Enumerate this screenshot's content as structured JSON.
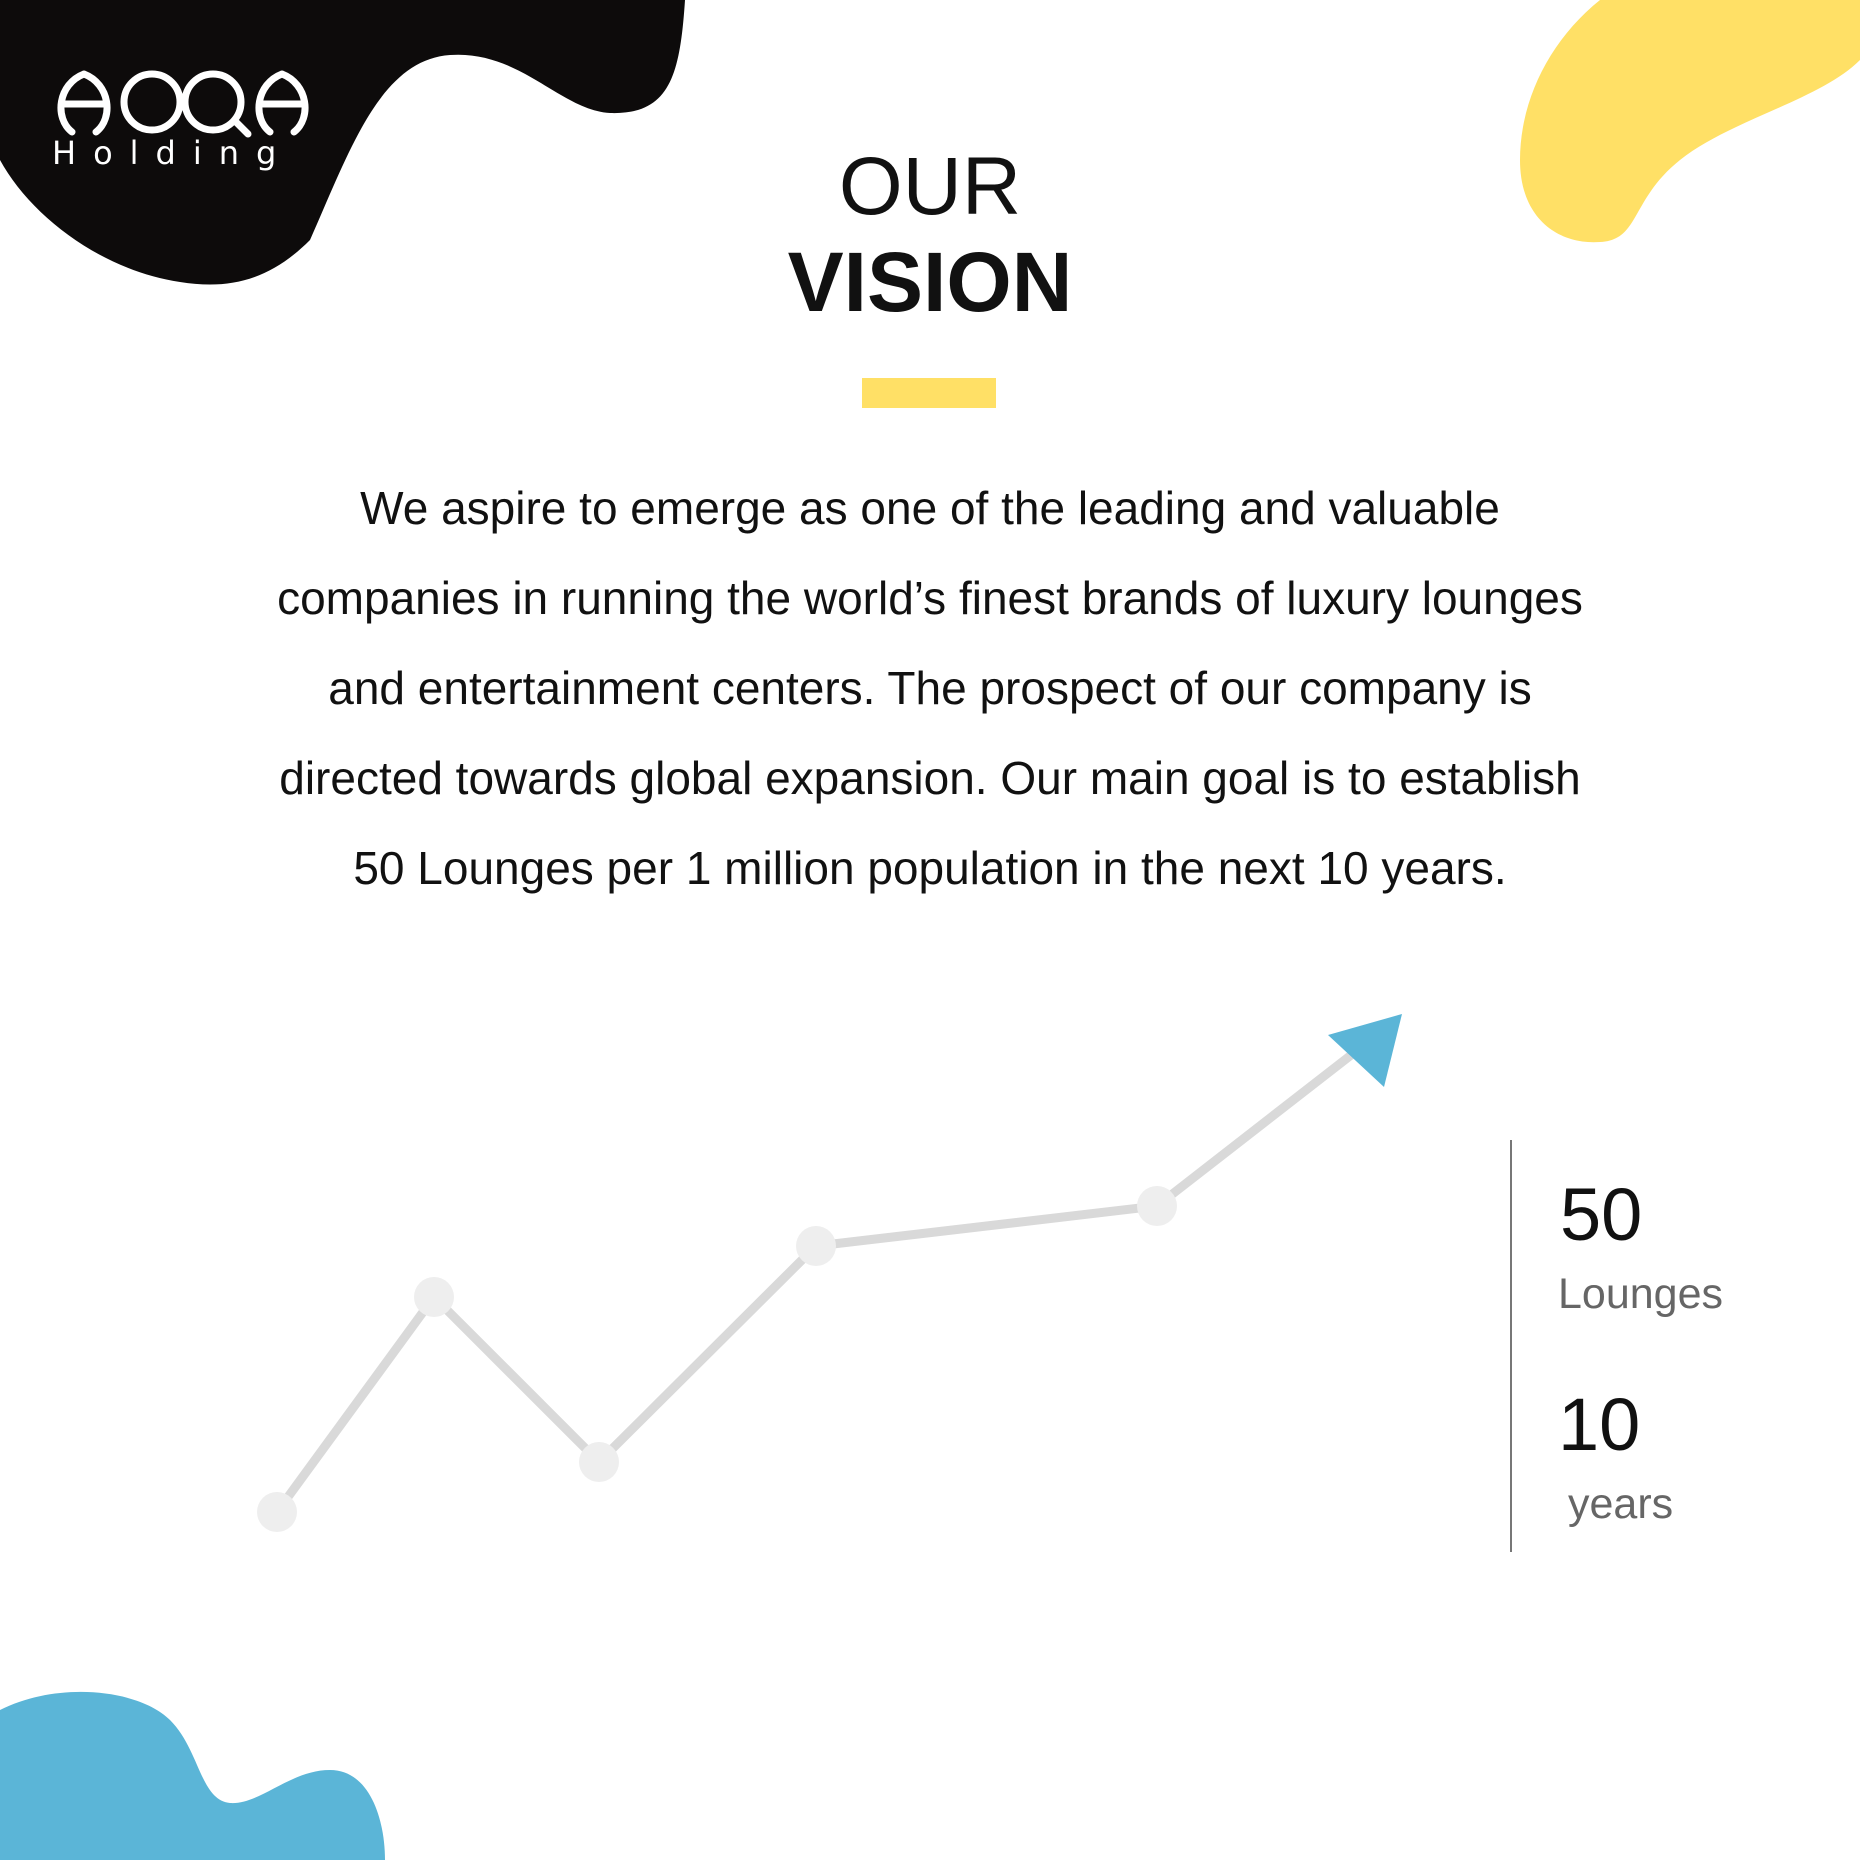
{
  "brand": {
    "logo_text": "HOQA",
    "sub_label": "Holding"
  },
  "heading": {
    "line1": "OUR",
    "line2": "VISION"
  },
  "body": {
    "lines": [
      "We aspire to emerge as one of the leading and valuable",
      "companies in running the world’s finest brands of luxury lounges",
      "and entertainment centers. The prospect of our company is",
      "directed towards global expansion. Our main goal is to establish",
      "50  Lounges per 1 million population in the next 10 years."
    ]
  },
  "stats": {
    "lounges_value": "50",
    "lounges_label": "Lounges",
    "years_value": "10",
    "years_label": "years"
  },
  "colors": {
    "black": "#0d0b0b",
    "yellow": "#ffe066",
    "blue": "#5bb5d7",
    "line": "#d9d9d9",
    "dot": "#eeeeee"
  },
  "icons": {
    "trend_arrow": "arrow-up-right-icon"
  }
}
